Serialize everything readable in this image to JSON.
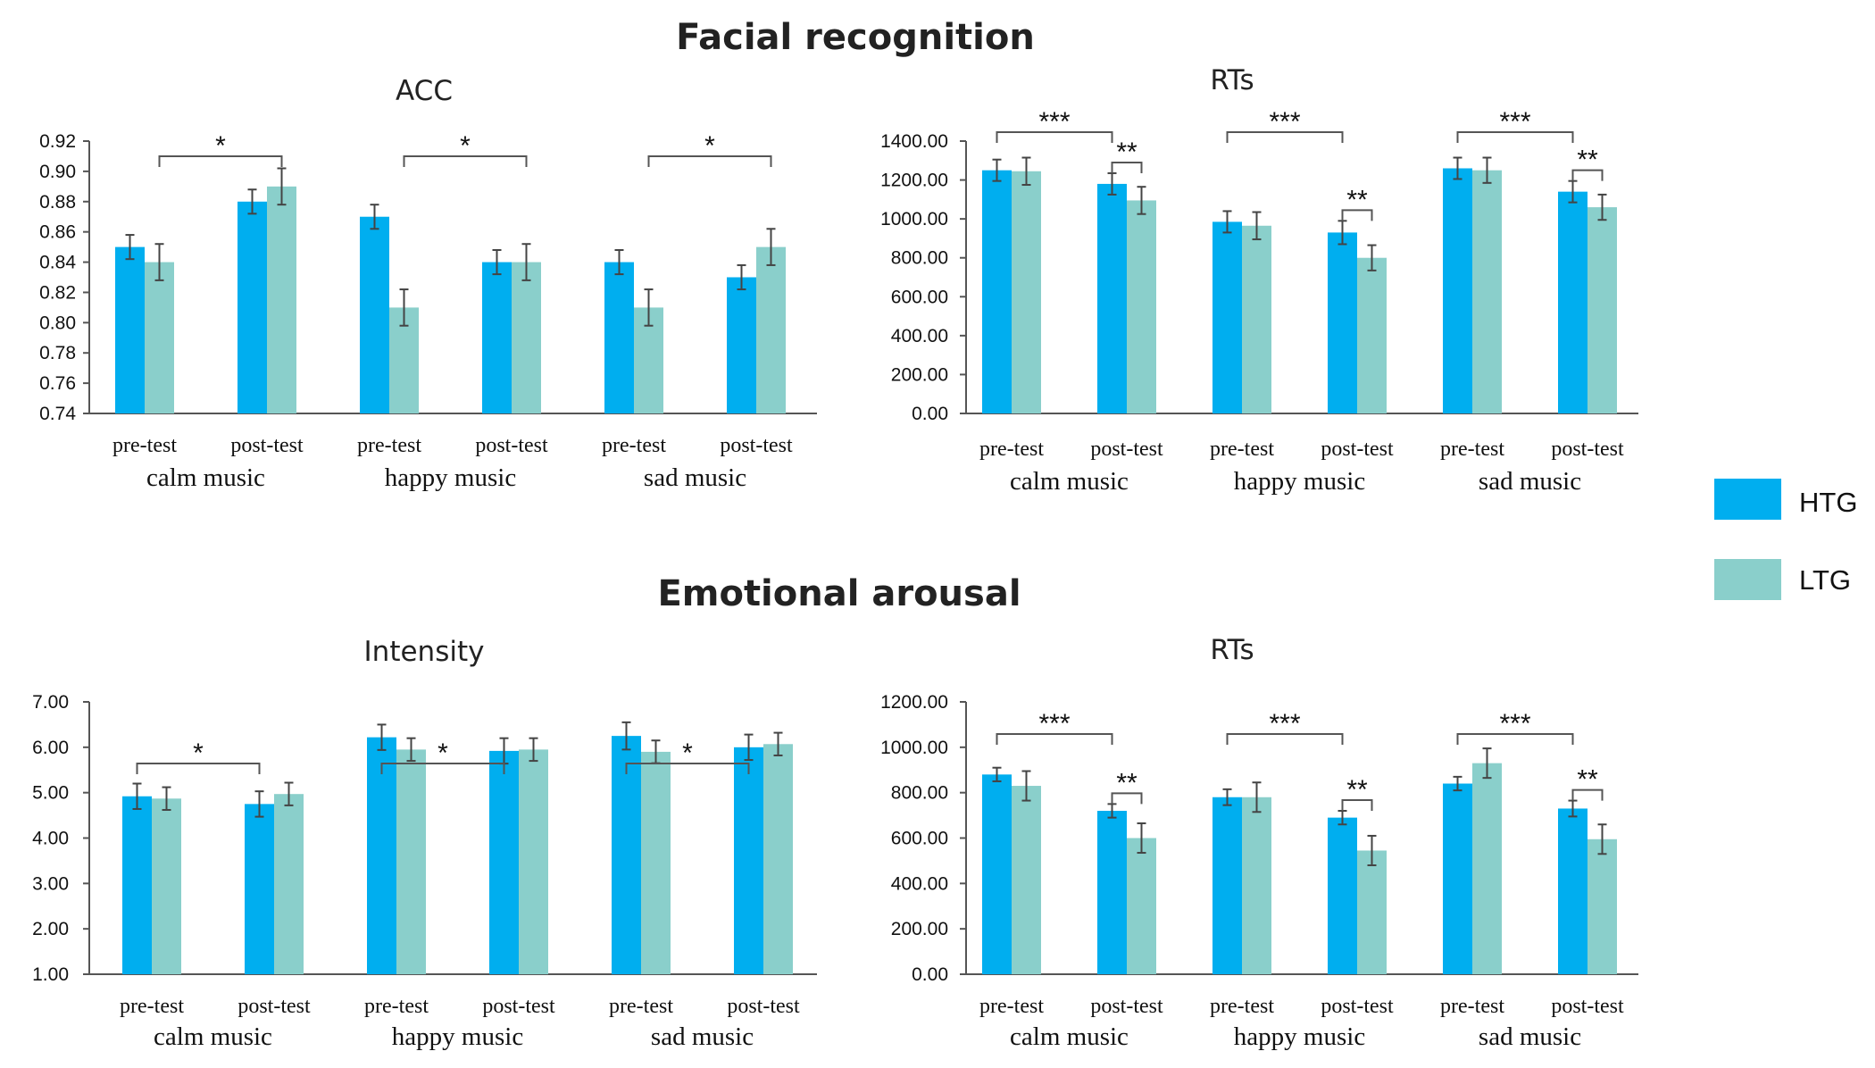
{
  "figure": {
    "section_titles": [
      "Facial recognition",
      "Emotional arousal"
    ],
    "legend": [
      {
        "label": "HTG",
        "color": "#00AEEF"
      },
      {
        "label": "LTG",
        "color": "#8ACFCB"
      }
    ]
  },
  "chart_data": [
    {
      "type": "bar",
      "title": "ACC",
      "section": "Facial recognition",
      "categories": [
        "pre-test",
        "post-test",
        "pre-test",
        "post-test",
        "pre-test",
        "post-test"
      ],
      "groups": [
        "calm music",
        "happy music",
        "sad music"
      ],
      "ylim": [
        0.74,
        0.92
      ],
      "yticks": [
        0.74,
        0.76,
        0.78,
        0.8,
        0.82,
        0.84,
        0.86,
        0.88,
        0.9,
        0.92
      ],
      "ytick_labels": [
        "0.74",
        "0.76",
        "0.78",
        "0.80",
        "0.82",
        "0.84",
        "0.86",
        "0.88",
        "0.90",
        "0.92"
      ],
      "series": [
        {
          "name": "HTG",
          "values": [
            0.85,
            0.88,
            0.87,
            0.84,
            0.84,
            0.83
          ],
          "errors": [
            0.008,
            0.008,
            0.008,
            0.008,
            0.008,
            0.008
          ]
        },
        {
          "name": "LTG",
          "values": [
            0.84,
            0.89,
            0.81,
            0.84,
            0.81,
            0.85
          ],
          "errors": [
            0.012,
            0.012,
            0.012,
            0.012,
            0.012,
            0.012
          ]
        }
      ],
      "significance": [
        {
          "from": "1.LTG",
          "to": "2.LTG",
          "label": "*",
          "level": 1
        },
        {
          "from": "3.LTG",
          "to": "4.LTG",
          "label": "*",
          "level": 1
        },
        {
          "from": "5.LTG",
          "to": "6.LTG",
          "label": "*",
          "level": 1
        }
      ]
    },
    {
      "type": "bar",
      "title": "RTs",
      "section": "Facial recognition",
      "categories": [
        "pre-test",
        "post-test",
        "pre-test",
        "post-test",
        "pre-test",
        "post-test"
      ],
      "groups": [
        "calm music",
        "happy music",
        "sad music"
      ],
      "ylim": [
        0,
        1400
      ],
      "yticks": [
        0,
        200,
        400,
        600,
        800,
        1000,
        1200,
        1400
      ],
      "ytick_labels": [
        "0.00",
        "200.00",
        "400.00",
        "600.00",
        "800.00",
        "1000.00",
        "1200.00",
        "1400.00"
      ],
      "series": [
        {
          "name": "HTG",
          "values": [
            1250,
            1180,
            985,
            930,
            1260,
            1140
          ],
          "errors": [
            55,
            55,
            55,
            60,
            55,
            55
          ]
        },
        {
          "name": "LTG",
          "values": [
            1245,
            1095,
            965,
            800,
            1250,
            1060
          ],
          "errors": [
            70,
            70,
            70,
            65,
            65,
            65
          ]
        }
      ],
      "significance": [
        {
          "from": "1.HTG",
          "to": "2.HTG",
          "label": "***",
          "level": 1
        },
        {
          "from": "2.HTG",
          "to": "2.LTG",
          "label": "**",
          "level": 2
        },
        {
          "from": "3.HTG",
          "to": "4.HTG",
          "label": "***",
          "level": 1
        },
        {
          "from": "4.HTG",
          "to": "4.LTG",
          "label": "**",
          "level": 2
        },
        {
          "from": "5.HTG",
          "to": "6.HTG",
          "label": "***",
          "level": 1
        },
        {
          "from": "6.HTG",
          "to": "6.LTG",
          "label": "**",
          "level": 2
        }
      ]
    },
    {
      "type": "bar",
      "title": "Intensity",
      "section": "Emotional arousal",
      "categories": [
        "pre-test",
        "post-test",
        "pre-test",
        "post-test",
        "pre-test",
        "post-test"
      ],
      "groups": [
        "calm music",
        "happy music",
        "sad music"
      ],
      "ylim": [
        1,
        7
      ],
      "yticks": [
        1,
        2,
        3,
        4,
        5,
        6,
        7
      ],
      "ytick_labels": [
        "1.00",
        "2.00",
        "3.00",
        "4.00",
        "5.00",
        "6.00",
        "7.00"
      ],
      "series": [
        {
          "name": "HTG",
          "values": [
            4.92,
            4.75,
            6.22,
            5.92,
            6.25,
            6.0
          ],
          "errors": [
            0.28,
            0.28,
            0.28,
            0.28,
            0.3,
            0.28
          ]
        },
        {
          "name": "LTG",
          "values": [
            4.87,
            4.97,
            5.95,
            5.95,
            5.9,
            6.07
          ],
          "errors": [
            0.25,
            0.25,
            0.25,
            0.25,
            0.25,
            0.25
          ]
        }
      ],
      "significance": [
        {
          "from": "1.HTG",
          "to": "2.HTG",
          "label": "*",
          "level": 1
        },
        {
          "from": "3.HTG",
          "to": "4.HTG",
          "label": "*",
          "level": 1
        },
        {
          "from": "5.HTG",
          "to": "6.HTG",
          "label": "*",
          "level": 1
        }
      ]
    },
    {
      "type": "bar",
      "title": "RTs",
      "section": "Emotional arousal",
      "categories": [
        "pre-test",
        "post-test",
        "pre-test",
        "post-test",
        "pre-test",
        "post-test"
      ],
      "groups": [
        "calm music",
        "happy music",
        "sad music"
      ],
      "ylim": [
        0,
        1200
      ],
      "yticks": [
        0,
        200,
        400,
        600,
        800,
        1000,
        1200
      ],
      "ytick_labels": [
        "0.00",
        "200.00",
        "400.00",
        "600.00",
        "800.00",
        "1000.00",
        "1200.00"
      ],
      "series": [
        {
          "name": "HTG",
          "values": [
            880,
            720,
            780,
            690,
            840,
            730
          ],
          "errors": [
            30,
            30,
            35,
            30,
            30,
            35
          ]
        },
        {
          "name": "LTG",
          "values": [
            830,
            600,
            780,
            545,
            930,
            595
          ],
          "errors": [
            65,
            65,
            65,
            65,
            65,
            65
          ]
        }
      ],
      "significance": [
        {
          "from": "1.HTG",
          "to": "2.HTG",
          "label": "***",
          "level": 1
        },
        {
          "from": "2.HTG",
          "to": "2.LTG",
          "label": "**",
          "level": 2
        },
        {
          "from": "3.HTG",
          "to": "4.HTG",
          "label": "***",
          "level": 1
        },
        {
          "from": "4.HTG",
          "to": "4.LTG",
          "label": "**",
          "level": 2
        },
        {
          "from": "5.HTG",
          "to": "6.HTG",
          "label": "***",
          "level": 1
        },
        {
          "from": "6.HTG",
          "to": "6.LTG",
          "label": "**",
          "level": 2
        }
      ]
    }
  ]
}
